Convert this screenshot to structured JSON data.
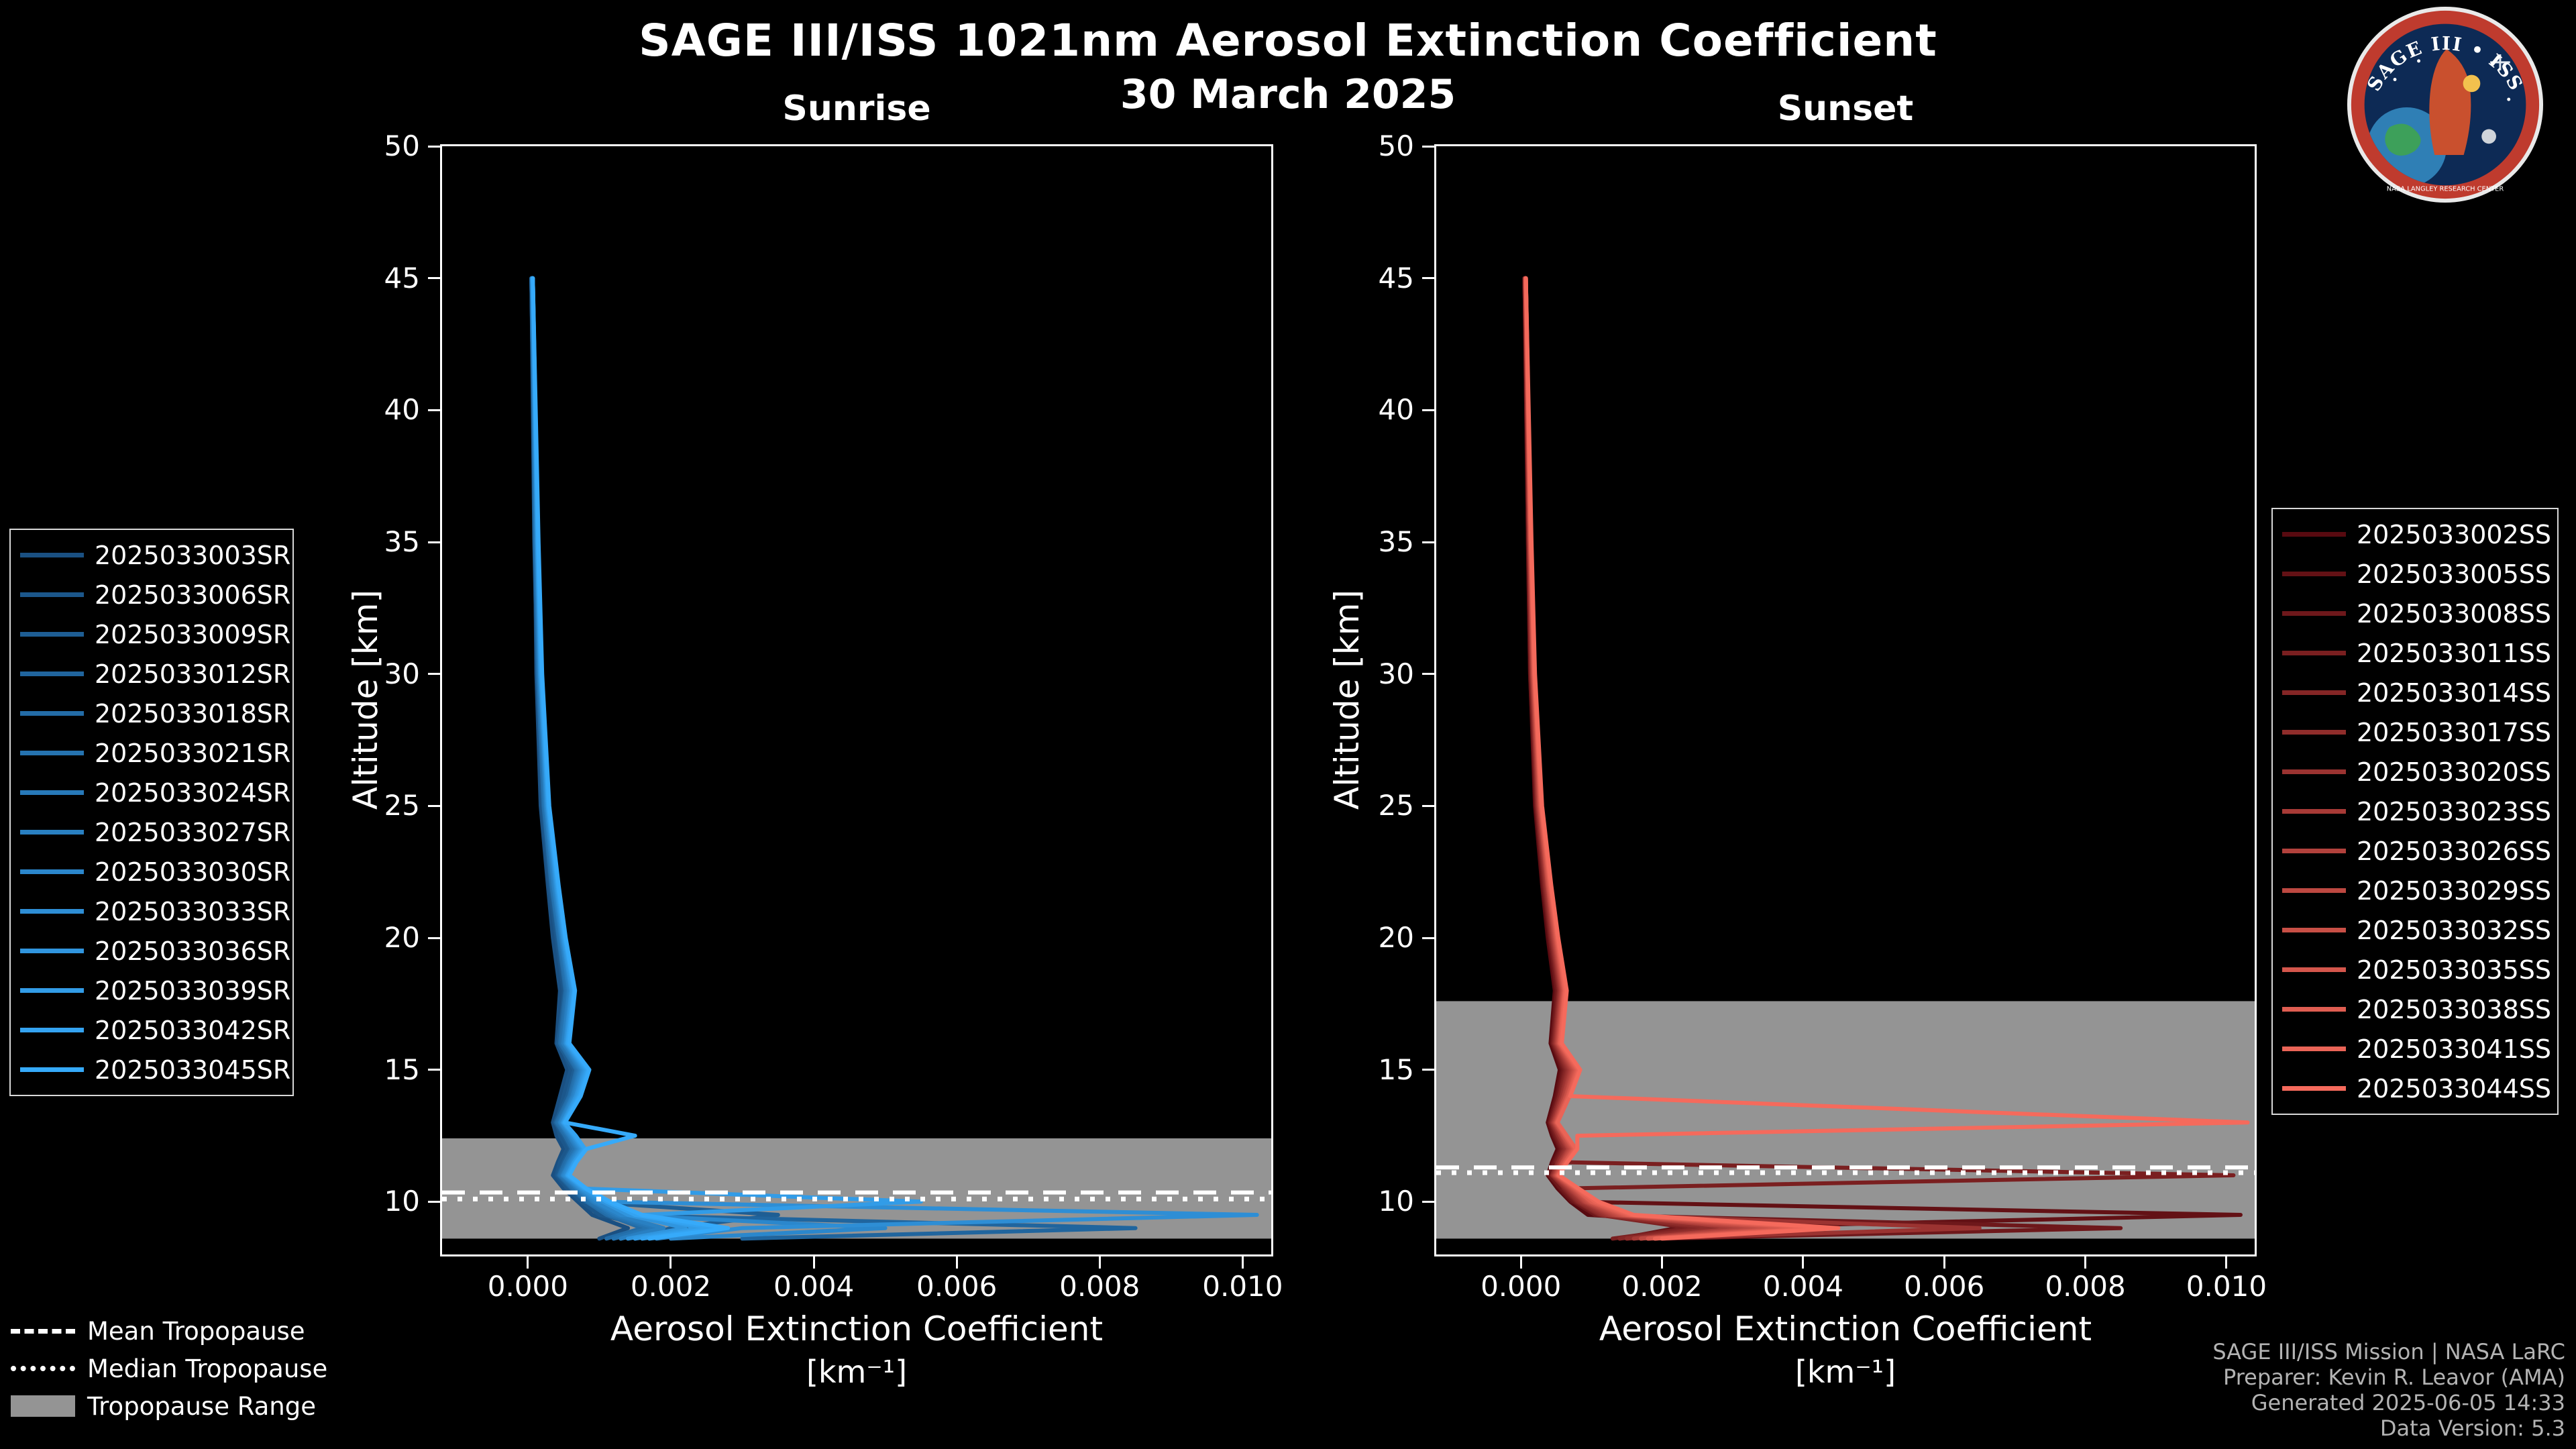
{
  "header": {
    "title": "SAGE III/ISS 1021nm Aerosol Extinction Coefficient",
    "date": "30 March 2025"
  },
  "logo": {
    "top_text": "SAGE III • ISS",
    "bottom_text": "NASA LANGLEY RESEARCH CENTER"
  },
  "tropo_legend": {
    "items": [
      {
        "label": "Mean Tropopause",
        "style": "dashed"
      },
      {
        "label": "Median Tropopause",
        "style": "dotted"
      },
      {
        "label": "Tropopause Range",
        "style": "band"
      }
    ],
    "band_color": "#949494"
  },
  "footer": {
    "lines": [
      "SAGE III/ISS Mission | NASA LaRC",
      "Preparer: Kevin R. Leavor (AMA)",
      "Generated 2025-06-05 14:33",
      "Data Version: 5.3"
    ]
  },
  "chart_data": [
    {
      "type": "line",
      "title": "Sunrise",
      "xlabel": "Aerosol Extinction Coefficient",
      "xlabel_units": "[km⁻¹]",
      "ylabel": "Altitude [km]",
      "xlim": [
        -0.0012,
        0.0104
      ],
      "ylim": [
        8,
        50
      ],
      "x_ticks": [
        0,
        0.002,
        0.004,
        0.006,
        0.008,
        0.01
      ],
      "x_tick_labels": [
        "0.000",
        "0.002",
        "0.004",
        "0.006",
        "0.008",
        "0.010"
      ],
      "y_ticks": [
        50,
        45,
        40,
        35,
        30,
        25,
        20,
        15,
        10
      ],
      "grid": false,
      "legend_position": "outside-left",
      "tropopause": {
        "mean": 10.35,
        "median": 10.1,
        "range": [
          8.6,
          12.4
        ]
      },
      "altitudes": [
        45,
        35,
        30,
        25,
        22,
        20,
        18,
        16,
        15,
        14,
        13,
        12.5,
        12,
        11.5,
        11,
        10.5,
        10,
        9.5,
        9,
        8.6
      ],
      "series": [
        {
          "name": "2025033003SR",
          "color": "#1a5082",
          "values": [
            5e-05,
            0.0001,
            0.00012,
            0.00018,
            0.00028,
            0.00035,
            0.00045,
            0.0004,
            0.00055,
            0.00045,
            0.00035,
            0.0004,
            0.0005,
            0.00042,
            0.00035,
            0.0005,
            0.0007,
            0.0009,
            0.0014,
            0.001
          ]
        },
        {
          "name": "2025033006SR",
          "color": "#1c578b",
          "values": [
            5e-05,
            9e-05,
            0.00013,
            0.0002,
            0.0003,
            0.0004,
            0.0005,
            0.00045,
            0.0006,
            0.0005,
            0.0004,
            0.00045,
            0.00055,
            0.00045,
            0.0004,
            0.00055,
            0.00075,
            0.001,
            0.0018,
            0.0012
          ]
        },
        {
          "name": "2025033009SR",
          "color": "#1e5e94",
          "values": [
            5e-05,
            0.0001,
            0.00014,
            0.00022,
            0.00032,
            0.00042,
            0.00052,
            0.00042,
            0.00065,
            0.00055,
            0.00038,
            0.0005,
            0.0006,
            0.0005,
            0.00042,
            0.0006,
            0.0008,
            0.0035,
            0.002,
            0.0015
          ]
        },
        {
          "name": "2025033012SR",
          "color": "#20659e",
          "values": [
            5e-05,
            0.00011,
            0.00015,
            0.00024,
            0.00034,
            0.00044,
            0.00054,
            0.00046,
            0.0007,
            0.0006,
            0.00042,
            0.00055,
            0.00065,
            0.00055,
            0.00045,
            0.00065,
            0.00085,
            0.0012,
            0.0085,
            0.003
          ]
        },
        {
          "name": "2025033018SR",
          "color": "#236ca7",
          "values": [
            5e-05,
            0.0001,
            0.00014,
            0.00022,
            0.00033,
            0.00043,
            0.00053,
            0.00045,
            0.00068,
            0.00058,
            0.0004,
            0.00052,
            0.00062,
            0.00052,
            0.00044,
            0.00062,
            0.00082,
            0.0011,
            0.0016,
            0.0011
          ]
        },
        {
          "name": "2025033021SR",
          "color": "#2573b0",
          "values": [
            6e-05,
            0.00011,
            0.00015,
            0.00023,
            0.00034,
            0.00044,
            0.00055,
            0.00047,
            0.0007,
            0.0006,
            0.00042,
            0.00055,
            0.00065,
            0.00055,
            0.00046,
            0.00065,
            0.00085,
            0.00115,
            0.0017,
            0.0012
          ]
        },
        {
          "name": "2025033024SR",
          "color": "#2779b9",
          "values": [
            6e-05,
            0.00012,
            0.00016,
            0.00025,
            0.00036,
            0.00046,
            0.00057,
            0.00049,
            0.00072,
            0.00062,
            0.00044,
            0.00057,
            0.00068,
            0.00057,
            0.00048,
            0.00068,
            0.0009,
            0.0012,
            0.0018,
            0.0013
          ]
        },
        {
          "name": "2025033027SR",
          "color": "#2980c2",
          "values": [
            6e-05,
            0.00012,
            0.00016,
            0.00025,
            0.00036,
            0.00047,
            0.00058,
            0.0005,
            0.00074,
            0.00063,
            0.00045,
            0.00058,
            0.0007,
            0.00058,
            0.00049,
            0.0007,
            0.00092,
            0.00125,
            0.0019,
            0.0013
          ]
        },
        {
          "name": "2025033030SR",
          "color": "#2b87cc",
          "values": [
            6e-05,
            0.00013,
            0.00017,
            0.00026,
            0.00038,
            0.00048,
            0.0006,
            0.00052,
            0.00076,
            0.00065,
            0.00046,
            0.0006,
            0.00072,
            0.0006,
            0.0005,
            0.00072,
            0.00095,
            0.0013,
            0.005,
            0.002
          ]
        },
        {
          "name": "2025033033SR",
          "color": "#2e8ed5",
          "values": [
            6e-05,
            0.00013,
            0.00017,
            0.00027,
            0.00039,
            0.00049,
            0.00061,
            0.00053,
            0.00078,
            0.00067,
            0.00048,
            0.00062,
            0.00074,
            0.00062,
            0.00052,
            0.00074,
            0.001,
            0.0102,
            0.003,
            0.0018
          ]
        },
        {
          "name": "2025033036SR",
          "color": "#3095de",
          "values": [
            7e-05,
            0.00013,
            0.00018,
            0.00028,
            0.0004,
            0.0005,
            0.00062,
            0.00054,
            0.0008,
            0.00068,
            0.00049,
            0.00064,
            0.00076,
            0.00064,
            0.00054,
            0.00076,
            0.00105,
            0.0014,
            0.0022,
            0.0014
          ]
        },
        {
          "name": "2025033039SR",
          "color": "#329ce7",
          "values": [
            7e-05,
            0.00014,
            0.00018,
            0.00028,
            0.00041,
            0.00051,
            0.00064,
            0.00055,
            0.00082,
            0.0007,
            0.0005,
            0.00065,
            0.00078,
            0.00065,
            0.00055,
            0.00078,
            0.0055,
            0.0016,
            0.0024,
            0.0015
          ]
        },
        {
          "name": "2025033042SR",
          "color": "#34a3f1",
          "values": [
            7e-05,
            0.00014,
            0.00019,
            0.00029,
            0.00042,
            0.00052,
            0.00065,
            0.00056,
            0.00084,
            0.00072,
            0.00051,
            0.00067,
            0.0008,
            0.00067,
            0.00056,
            0.0008,
            0.0011,
            0.0015,
            0.0026,
            0.0016
          ]
        },
        {
          "name": "2025033045SR",
          "color": "#36aafa",
          "values": [
            7e-05,
            0.00015,
            0.0002,
            0.0003,
            0.00043,
            0.00053,
            0.00066,
            0.00058,
            0.00086,
            0.00074,
            0.00052,
            0.0015,
            0.00082,
            0.00068,
            0.00058,
            0.00082,
            0.00115,
            0.0016,
            0.0028,
            0.0017
          ]
        }
      ]
    },
    {
      "type": "line",
      "title": "Sunset",
      "xlabel": "Aerosol Extinction Coefficient",
      "xlabel_units": "[km⁻¹]",
      "ylabel": "Altitude [km]",
      "xlim": [
        -0.0012,
        0.0104
      ],
      "ylim": [
        8,
        50
      ],
      "x_ticks": [
        0,
        0.002,
        0.004,
        0.006,
        0.008,
        0.01
      ],
      "x_tick_labels": [
        "0.000",
        "0.002",
        "0.004",
        "0.006",
        "0.008",
        "0.010"
      ],
      "y_ticks": [
        50,
        45,
        40,
        35,
        30,
        25,
        20,
        15,
        10
      ],
      "grid": false,
      "legend_position": "outside-right",
      "tropopause": {
        "mean": 11.3,
        "median": 11.1,
        "range": [
          8.6,
          17.6
        ]
      },
      "altitudes": [
        45,
        35,
        30,
        25,
        22,
        20,
        18,
        16,
        15,
        14,
        13,
        12.5,
        12,
        11.5,
        11,
        10.5,
        10,
        9.5,
        9,
        8.6
      ],
      "series": [
        {
          "name": "2025033002SS",
          "color": "#580a10",
          "values": [
            5e-05,
            0.0001,
            0.00013,
            0.0002,
            0.0003,
            0.00038,
            0.00048,
            0.00042,
            0.00055,
            0.00048,
            0.00038,
            0.00044,
            0.00052,
            0.00044,
            0.00038,
            0.00052,
            0.0007,
            0.00095,
            0.0042,
            0.0015
          ]
        },
        {
          "name": "2025033005SS",
          "color": "#631115",
          "values": [
            5e-05,
            0.0001,
            0.00013,
            0.00021,
            0.00031,
            0.0004,
            0.0005,
            0.00044,
            0.00058,
            0.0005,
            0.0004,
            0.00046,
            0.00055,
            0.00046,
            0.0004,
            0.00055,
            0.00072,
            0.0102,
            0.0022,
            0.0014
          ]
        },
        {
          "name": "2025033008SS",
          "color": "#6e181b",
          "values": [
            5e-05,
            0.00011,
            0.00014,
            0.00022,
            0.00032,
            0.00041,
            0.00051,
            0.00045,
            0.0006,
            0.00052,
            0.00041,
            0.00048,
            0.00057,
            0.00048,
            0.00041,
            0.00057,
            0.00075,
            0.00105,
            0.0085,
            0.002
          ]
        },
        {
          "name": "2025033011SS",
          "color": "#7a1f20",
          "values": [
            5e-05,
            0.00011,
            0.00014,
            0.00022,
            0.00033,
            0.00042,
            0.00053,
            0.00046,
            0.00062,
            0.00054,
            0.00042,
            0.0005,
            0.00059,
            0.0005,
            0.0101,
            0.0006,
            0.00078,
            0.0011,
            0.0024,
            0.0013
          ]
        },
        {
          "name": "2025033014SS",
          "color": "#852626",
          "values": [
            6e-05,
            0.00011,
            0.00015,
            0.00023,
            0.00034,
            0.00043,
            0.00054,
            0.00047,
            0.00064,
            0.00055,
            0.00043,
            0.00052,
            0.00061,
            0.00052,
            0.00044,
            0.00062,
            0.0008,
            0.00112,
            0.0026,
            0.0014
          ]
        },
        {
          "name": "2025033017SS",
          "color": "#902d2b",
          "values": [
            6e-05,
            0.00012,
            0.00015,
            0.00024,
            0.00035,
            0.00044,
            0.00055,
            0.00048,
            0.00066,
            0.00057,
            0.00044,
            0.00053,
            0.00063,
            0.00053,
            0.00045,
            0.00064,
            0.00082,
            0.00115,
            0.0028,
            0.0015
          ]
        },
        {
          "name": "2025033020SS",
          "color": "#9b3331",
          "values": [
            6e-05,
            0.00012,
            0.00016,
            0.00024,
            0.00036,
            0.00045,
            0.00056,
            0.00049,
            0.00068,
            0.00058,
            0.00045,
            0.00055,
            0.00065,
            0.00055,
            0.00046,
            0.00066,
            0.00085,
            0.0012,
            0.0065,
            0.0018
          ]
        },
        {
          "name": "2025033023SS",
          "color": "#a73a36",
          "values": [
            6e-05,
            0.00012,
            0.00016,
            0.00025,
            0.00037,
            0.00046,
            0.00057,
            0.0005,
            0.0007,
            0.0006,
            0.00046,
            0.00056,
            0.00067,
            0.00056,
            0.00047,
            0.00068,
            0.00088,
            0.00125,
            0.0031,
            0.0016
          ]
        },
        {
          "name": "2025033026SS",
          "color": "#b2413c",
          "values": [
            6e-05,
            0.00013,
            0.00017,
            0.00026,
            0.00038,
            0.00047,
            0.00058,
            0.00051,
            0.00072,
            0.00061,
            0.00047,
            0.00058,
            0.00068,
            0.00058,
            0.00048,
            0.0007,
            0.0009,
            0.0013,
            0.0033,
            0.0017
          ]
        },
        {
          "name": "2025033029SS",
          "color": "#bd4841",
          "values": [
            6e-05,
            0.00013,
            0.00017,
            0.00026,
            0.00038,
            0.00048,
            0.00059,
            0.00052,
            0.00074,
            0.00063,
            0.00048,
            0.00059,
            0.0007,
            0.00059,
            0.00049,
            0.00072,
            0.00092,
            0.00135,
            0.0035,
            0.0017
          ]
        },
        {
          "name": "2025033032SS",
          "color": "#c84f46",
          "values": [
            7e-05,
            0.00013,
            0.00018,
            0.00027,
            0.00039,
            0.00049,
            0.0006,
            0.00053,
            0.00076,
            0.00064,
            0.00049,
            0.0006,
            0.00072,
            0.0006,
            0.0005,
            0.00074,
            0.00095,
            0.0014,
            0.0037,
            0.0018
          ]
        },
        {
          "name": "2025033035SS",
          "color": "#d4564c",
          "values": [
            7e-05,
            0.00014,
            0.00018,
            0.00028,
            0.0004,
            0.0005,
            0.00061,
            0.00054,
            0.00078,
            0.00066,
            0.0005,
            0.00062,
            0.00074,
            0.00062,
            0.00051,
            0.00076,
            0.00098,
            0.00145,
            0.0039,
            0.0018
          ]
        },
        {
          "name": "2025033038SS",
          "color": "#df5d51",
          "values": [
            7e-05,
            0.00014,
            0.00019,
            0.00028,
            0.00041,
            0.00051,
            0.00062,
            0.00055,
            0.0008,
            0.00067,
            0.00051,
            0.00063,
            0.00076,
            0.00063,
            0.00052,
            0.00078,
            0.001,
            0.0015,
            0.0041,
            0.0019
          ]
        },
        {
          "name": "2025033041SS",
          "color": "#ea6457",
          "values": [
            7e-05,
            0.00014,
            0.00019,
            0.00029,
            0.00042,
            0.00052,
            0.00063,
            0.00056,
            0.00082,
            0.00069,
            0.00052,
            0.00065,
            0.00078,
            0.00065,
            0.00053,
            0.0008,
            0.00105,
            0.00155,
            0.0043,
            0.0019
          ]
        },
        {
          "name": "2025033044SS",
          "color": "#f56a5c",
          "values": [
            7e-05,
            0.00015,
            0.0002,
            0.0003,
            0.00043,
            0.00053,
            0.00065,
            0.00058,
            0.00084,
            0.0007,
            0.0103,
            0.0008,
            0.0008,
            0.00066,
            0.00054,
            0.00082,
            0.0011,
            0.0016,
            0.0045,
            0.002
          ]
        }
      ]
    }
  ]
}
